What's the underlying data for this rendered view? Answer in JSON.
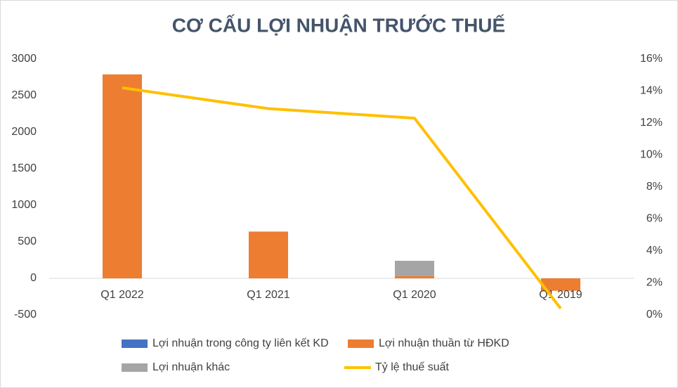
{
  "chart_data": {
    "type": "bar-line",
    "title": "CƠ CẤU LỢI NHUẬN TRƯỚC THUẾ",
    "categories": [
      "Q1 2022",
      "Q1 2021",
      "Q1 2020",
      "Q1 2019"
    ],
    "series": [
      {
        "name": "Lợi nhuận trong công ty liên kết KD",
        "color": "#4472c4",
        "values": [
          0,
          0,
          0,
          0
        ]
      },
      {
        "name": "Lợi nhuận thuần từ HĐKD",
        "color": "#ed7d31",
        "values": [
          2790,
          640,
          30,
          -170
        ]
      },
      {
        "name": "Lợi nhuận khác",
        "color": "#a5a5a5",
        "values": [
          0,
          0,
          210,
          0
        ]
      },
      {
        "name": "Tỷ lệ thuế suất",
        "color": "#ffc000",
        "axis": "y2",
        "values": [
          14.2,
          12.9,
          12.3,
          0.4
        ]
      }
    ],
    "ylim": [
      -500,
      3000
    ],
    "yticks": [
      -500,
      0,
      500,
      1000,
      1500,
      2000,
      2500,
      3000
    ],
    "y2lim": [
      0,
      16
    ],
    "y2ticks": [
      {
        "value": 0,
        "label": "0%"
      },
      {
        "value": 2,
        "label": "2%"
      },
      {
        "value": 4,
        "label": "4%"
      },
      {
        "value": 6,
        "label": "6%"
      },
      {
        "value": 8,
        "label": "8%"
      },
      {
        "value": 10,
        "label": "10%"
      },
      {
        "value": 12,
        "label": "12%"
      },
      {
        "value": 14,
        "label": "14%"
      },
      {
        "value": 16,
        "label": "16%"
      }
    ],
    "grid": false
  }
}
